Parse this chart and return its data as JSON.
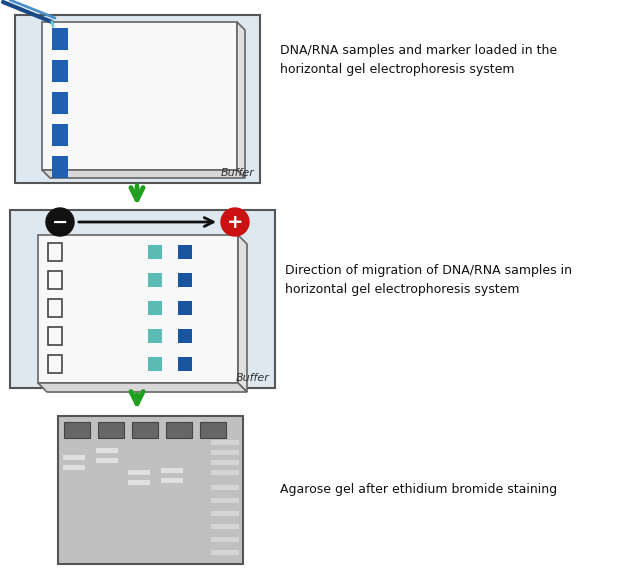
{
  "bg_color": "#ffffff",
  "arrow_color": "#1fa01f",
  "panel1": {
    "text": "DNA/RNA samples and marker loaded in the\nhorizontal gel electrophoresis system",
    "buffer_label": "Buffer"
  },
  "panel2": {
    "text": "Direction of migration of DNA/RNA samples in\nhorizontal gel electrophoresis system",
    "buffer_label": "Buffer"
  },
  "panel3": {
    "text": "Agarose gel after ethidium bromide staining"
  }
}
